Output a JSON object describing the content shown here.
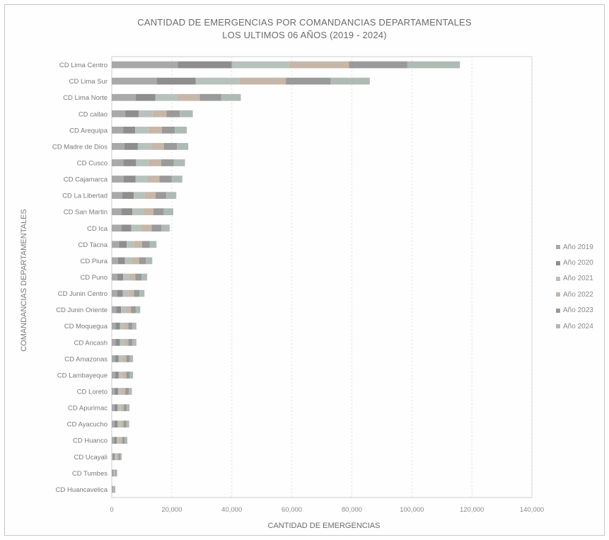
{
  "chart_data": {
    "type": "bar",
    "orientation": "horizontal",
    "stacked": true,
    "title": "CANTIDAD DE EMERGENCIAS POR COMANDANCIAS DEPARTAMENTALES",
    "subtitle": "LOS ULTIMOS 06 AÑOS (2019 - 2024)",
    "xlabel": "CANTIDAD DE EMERGENCIAS",
    "ylabel": "COMANDANCIAS DEPARTAMENTALES",
    "xlim": [
      0,
      140000
    ],
    "xticks": [
      "0",
      "20,000",
      "40,000",
      "60,000",
      "80,000",
      "100,000",
      "120,000",
      "140,000"
    ],
    "grid": "vertical dashed",
    "legend_position": "right",
    "categories": [
      "CD Lima Centro",
      "CD Lima Sur",
      "CD Lima Norte",
      "CD callao",
      "CD Arequipa",
      "CD Madre de Dios",
      "CD Cusco",
      "CD Cajamarca",
      "CD La Libertad",
      "CD San Martin",
      "CD Ica",
      "CD Tacna",
      "CD Piura",
      "CD Puno",
      "CD Junin Centro",
      "CD Junin Oriente",
      "CD Moquegua",
      "CD Ancash",
      "CD Amazonas",
      "CD Lambayeque",
      "CD Loreto",
      "CD Apurimac",
      "CD Ayacucho",
      "CD Huanco",
      "CD Ucayali",
      "CD Tumbes",
      "CD Huancavelica"
    ],
    "series": [
      {
        "name": "Año 2019",
        "color": "#a9a9a9",
        "values": [
          22000,
          15000,
          8000,
          4500,
          3800,
          4200,
          3900,
          4000,
          3500,
          3300,
          3200,
          2400,
          2100,
          1900,
          1800,
          1500,
          1300,
          1300,
          1100,
          1100,
          1000,
          900,
          900,
          800,
          500,
          300,
          200
        ]
      },
      {
        "name": "Año 2020",
        "color": "#8e8e8e",
        "values": [
          18000,
          13000,
          6500,
          4500,
          4000,
          4500,
          4200,
          3900,
          3800,
          3600,
          3300,
          2600,
          2300,
          1900,
          1900,
          1600,
          1400,
          1400,
          1200,
          1200,
          1100,
          1000,
          1000,
          900,
          500,
          300,
          200
        ]
      },
      {
        "name": "Año 2021",
        "color": "#b8c2bd",
        "values": [
          19000,
          14500,
          7200,
          4600,
          4400,
          4300,
          4100,
          4000,
          3600,
          3500,
          3400,
          2500,
          2300,
          2000,
          1800,
          1600,
          1400,
          1400,
          1200,
          1200,
          1200,
          1000,
          1000,
          900,
          600,
          300,
          200
        ]
      },
      {
        "name": "Año 2022",
        "color": "#c7b7a8",
        "values": [
          20000,
          15500,
          7600,
          4600,
          4500,
          4400,
          4300,
          4000,
          3700,
          3500,
          3400,
          2600,
          2400,
          2100,
          1900,
          1700,
          1400,
          1400,
          1300,
          1300,
          1200,
          1100,
          1000,
          900,
          600,
          300,
          200
        ]
      },
      {
        "name": "Año 2023",
        "color": "#9a9a9a",
        "values": [
          19500,
          15000,
          7200,
          4500,
          4300,
          4300,
          4200,
          4100,
          3600,
          3400,
          3200,
          2500,
          2300,
          2000,
          1800,
          1600,
          1400,
          1400,
          1200,
          1200,
          1200,
          1000,
          1000,
          900,
          600,
          300,
          200
        ]
      },
      {
        "name": "Año 2024",
        "color": "#aebbb4",
        "values": [
          17500,
          13000,
          6500,
          4300,
          4000,
          3800,
          3700,
          3500,
          3300,
          3200,
          2800,
          2300,
          2100,
          1900,
          1700,
          1500,
          1300,
          1300,
          1100,
          1100,
          1000,
          900,
          900,
          800,
          500,
          300,
          200
        ]
      }
    ]
  }
}
